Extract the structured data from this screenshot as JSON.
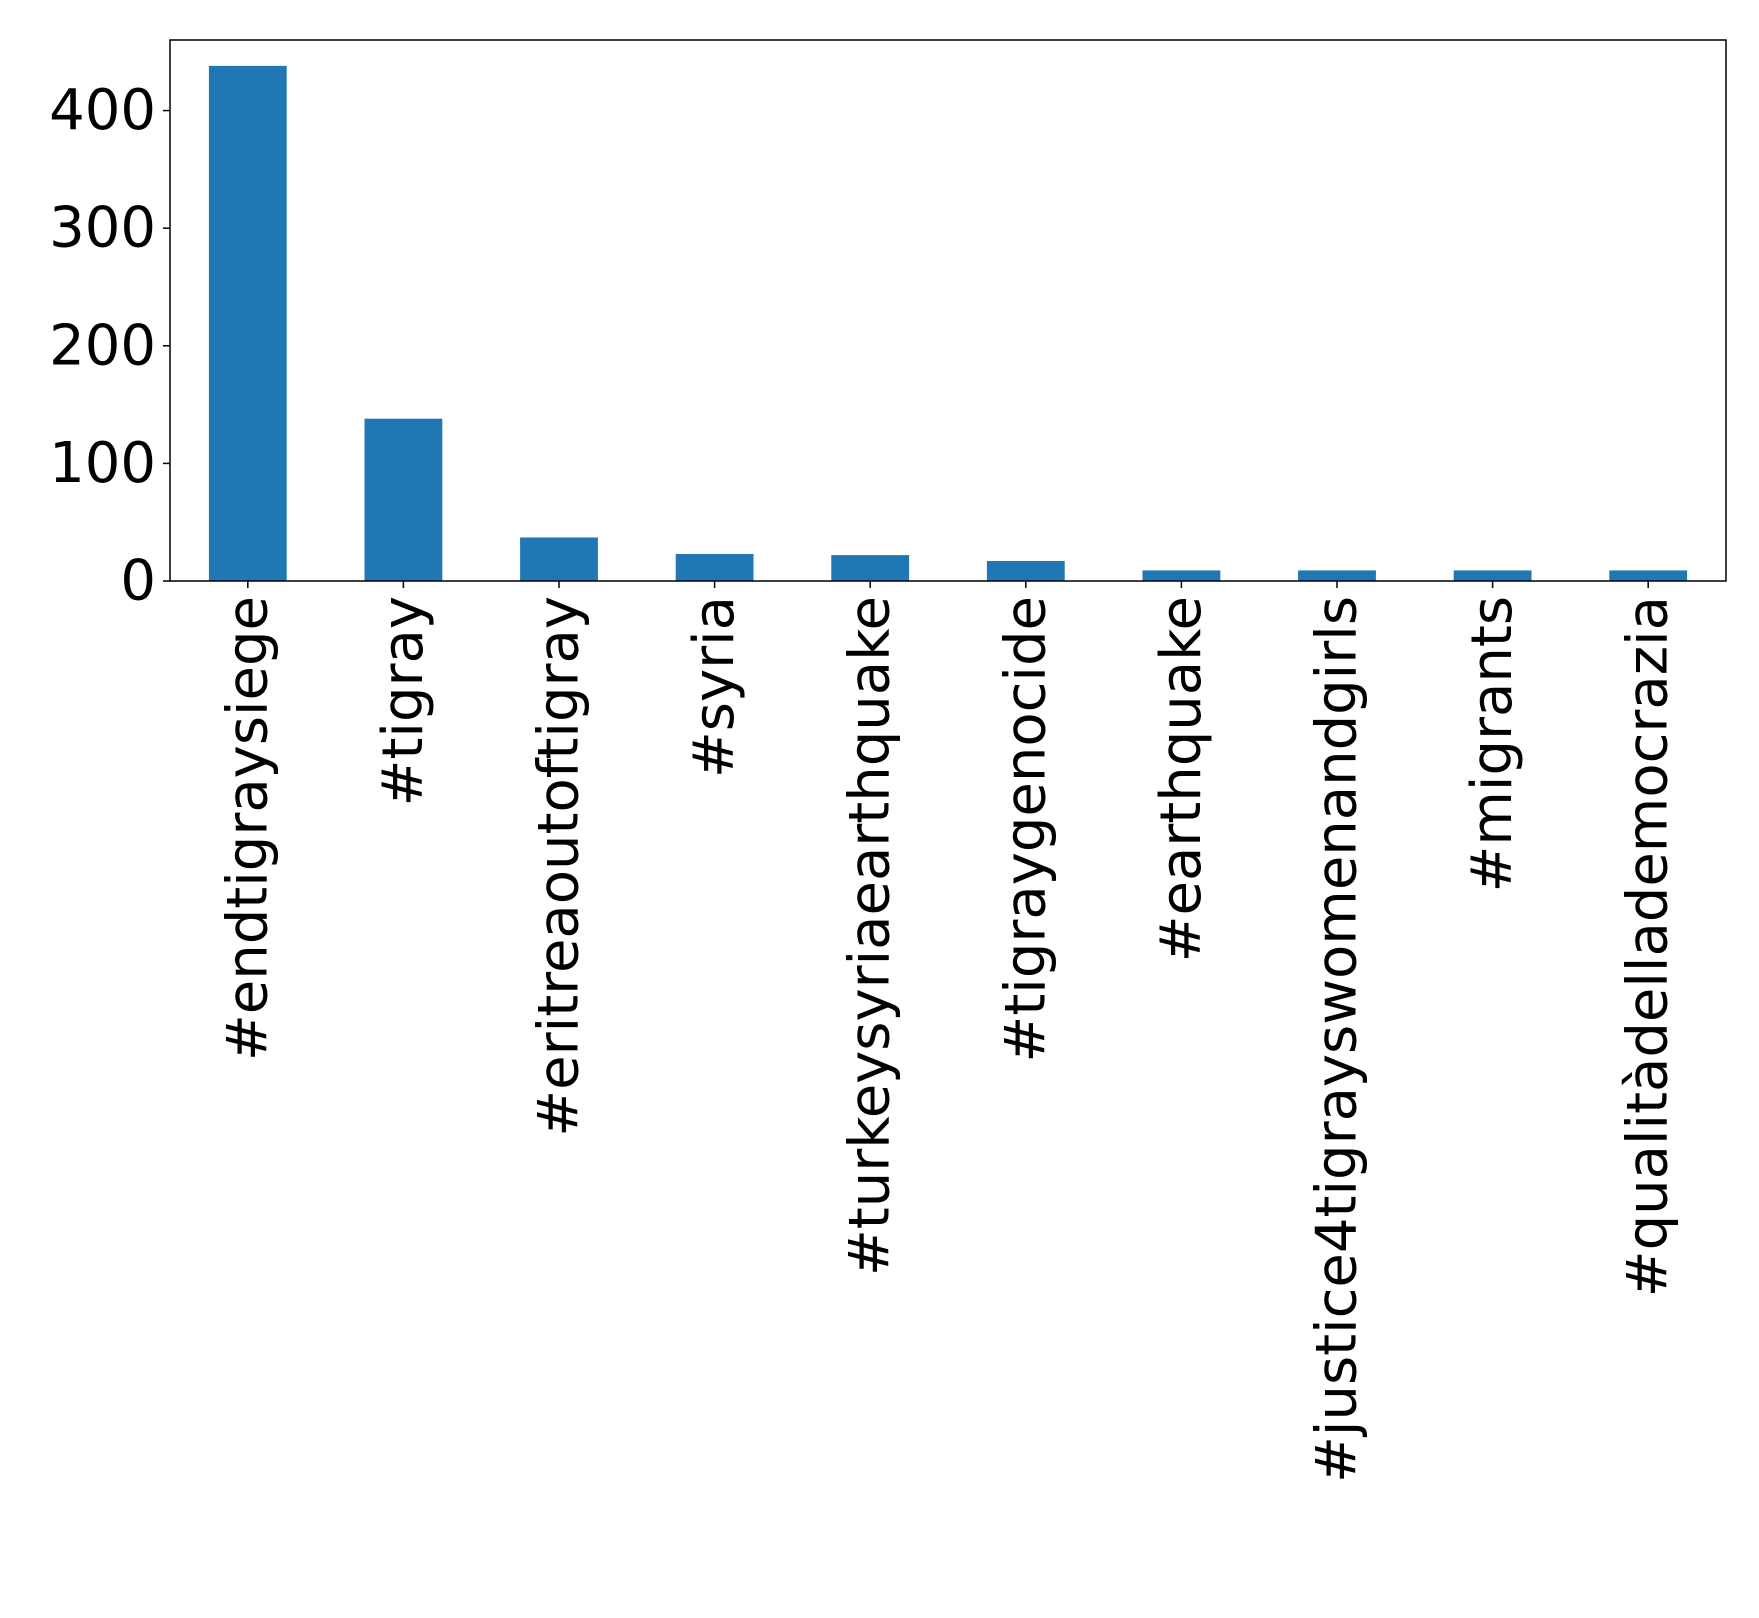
{
  "chart_data": {
    "type": "bar",
    "categories": [
      "#endtigraysiege",
      "#tigray",
      "#eritreaoutoftigray",
      "#syria",
      "#turkeysyriaearthquake",
      "#tigraygenocide",
      "#earthquake",
      "#justice4tigrayswomenandgirls",
      "#migrants",
      "#qualitàdellademocrazia"
    ],
    "values": [
      438,
      138,
      37,
      23,
      22,
      17,
      9,
      9,
      9,
      9
    ],
    "ylim": [
      0,
      460
    ],
    "yticks": [
      0,
      100,
      200,
      300,
      400
    ],
    "ytick_labels": [
      "0",
      "100",
      "200",
      "300",
      "400"
    ],
    "bar_color": "#1f77b4",
    "grid": false,
    "legend": "none",
    "title": "",
    "xlabel": "",
    "ylabel": ""
  }
}
